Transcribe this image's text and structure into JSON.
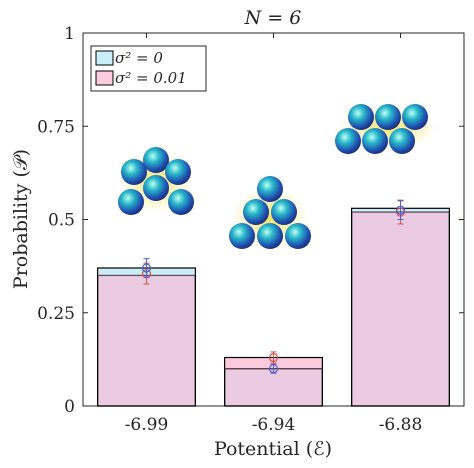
{
  "chart_data": {
    "type": "bar",
    "title": "N = 6",
    "xlabel": "Potential (ℰ)",
    "ylabel": "Probability (𝒫)",
    "categories": [
      "-6.99",
      "-6.94",
      "-6.88"
    ],
    "ylim": [
      0,
      1
    ],
    "yticks": [
      "0",
      "0.25",
      "0.5",
      "0.75",
      "1"
    ],
    "grid": false,
    "legend_position": "top-left",
    "series": [
      {
        "name": "σ² = 0",
        "color": "#c9eef7",
        "values": [
          0.37,
          0.1,
          0.53
        ],
        "marker_values": [
          0.37,
          0.1,
          0.525
        ],
        "error": [
          0.025,
          0.012,
          0.025
        ],
        "marker_color": "#4a5fd0"
      },
      {
        "name": "σ² = 0.01",
        "color": "#fbcbdd",
        "values": [
          0.35,
          0.13,
          0.52
        ],
        "marker_values": [
          0.355,
          0.13,
          0.52
        ],
        "error": [
          0.028,
          0.015,
          0.032
        ],
        "marker_color": "#d9534f"
      }
    ],
    "overlap_color": "#ebcbe2",
    "cluster_images": [
      "hexagonal-cluster-icon",
      "triangular-cluster-icon",
      "zigzag-cluster-icon"
    ]
  }
}
